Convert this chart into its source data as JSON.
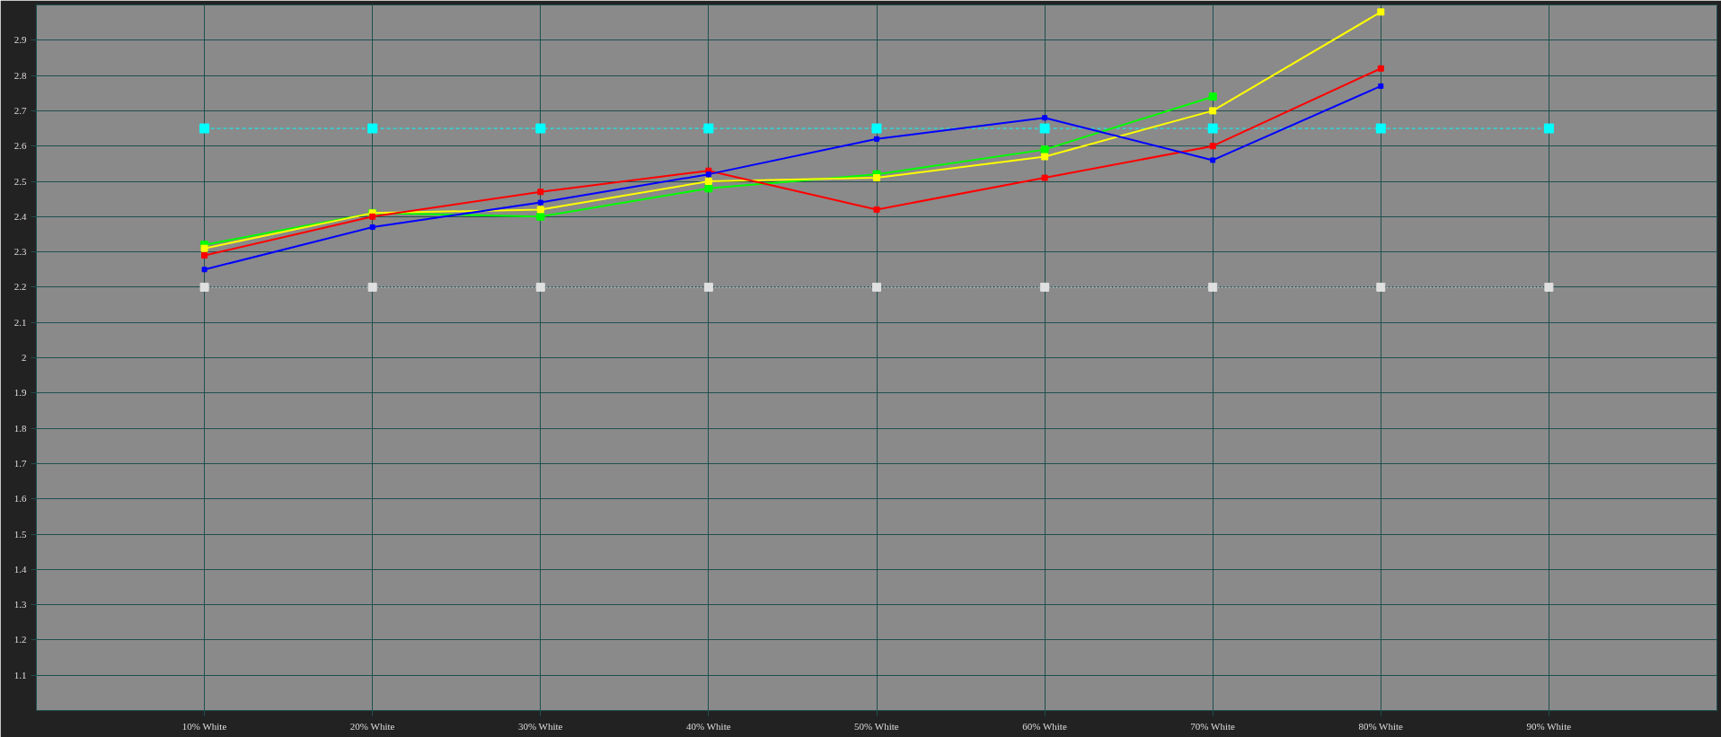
{
  "chart_data": {
    "type": "line",
    "x": [
      10,
      20,
      30,
      40,
      50,
      60,
      70,
      80,
      90
    ],
    "xlim": [
      0,
      100
    ],
    "ylim": [
      1.0,
      3.0
    ],
    "xticks": [
      {
        "value": 10,
        "label": "10% White"
      },
      {
        "value": 20,
        "label": "20% White"
      },
      {
        "value": 30,
        "label": "30% White"
      },
      {
        "value": 40,
        "label": "40% White"
      },
      {
        "value": 50,
        "label": "50% White"
      },
      {
        "value": 60,
        "label": "60% White"
      },
      {
        "value": 70,
        "label": "70% White"
      },
      {
        "value": 80,
        "label": "80% White"
      },
      {
        "value": 90,
        "label": "90% White"
      }
    ],
    "yticks": [
      1.1,
      1.2,
      1.3,
      1.4,
      1.5,
      1.6,
      1.7,
      1.8,
      1.9,
      2,
      2.1,
      2.2,
      2.3,
      2.4,
      2.5,
      2.6,
      2.7,
      2.8,
      2.9
    ],
    "grid": true,
    "marker": "square",
    "series": [
      {
        "color": "#00ffff",
        "line_style": "dashed",
        "values": [
          2.65,
          2.65,
          2.65,
          2.65,
          2.65,
          2.65,
          2.65,
          2.65,
          2.65
        ]
      },
      {
        "color": "#e0e0e0",
        "line_style": "dotted",
        "values": [
          2.2,
          2.2,
          2.2,
          2.2,
          2.2,
          2.2,
          2.2,
          2.2,
          2.2
        ]
      },
      {
        "color": "#00ff00",
        "line_style": "solid",
        "values": [
          2.32,
          2.41,
          2.4,
          2.48,
          2.52,
          2.59,
          2.74,
          null,
          null
        ]
      },
      {
        "color": "#ffff00",
        "line_style": "solid",
        "values": [
          2.31,
          2.41,
          2.42,
          2.5,
          2.51,
          2.57,
          2.7,
          2.98,
          null
        ]
      },
      {
        "color": "#ff0000",
        "line_style": "solid",
        "values": [
          2.29,
          2.4,
          2.47,
          2.53,
          2.42,
          2.51,
          2.6,
          2.82,
          null
        ]
      },
      {
        "color": "#0000ff",
        "line_style": "solid",
        "values": [
          2.25,
          2.37,
          2.44,
          2.52,
          2.62,
          2.68,
          2.56,
          2.77,
          null
        ]
      }
    ]
  }
}
